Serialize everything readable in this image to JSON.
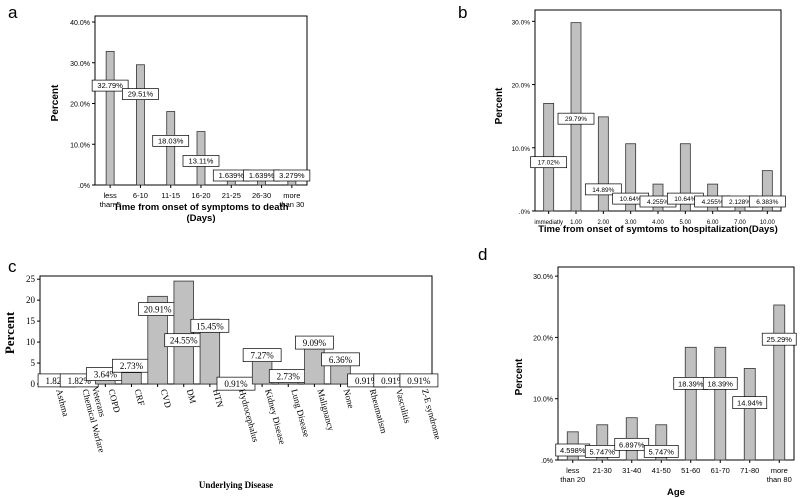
{
  "colors": {
    "bar": "#c0c0c0",
    "bar_stroke": "#333333",
    "axis": "#000000",
    "label_bg": "#ffffff"
  },
  "chart_data": [
    {
      "panel": "a",
      "type": "bar",
      "title": "",
      "ylabel": "Percent",
      "xlabel": "Time from onset of symptoms to death",
      "xlabel2": "(Days)",
      "categories": [
        [
          "less",
          "than 5"
        ],
        [
          "6-10"
        ],
        [
          "11-15"
        ],
        [
          "16-20"
        ],
        [
          "21-25"
        ],
        [
          "26-30"
        ],
        [
          "more",
          "than 30"
        ]
      ],
      "values": [
        32.79,
        29.51,
        18.03,
        13.11,
        1.639,
        1.639,
        3.279
      ],
      "data_labels": [
        "32.79%",
        "29.51%",
        "18.03%",
        "13.11%",
        "1.639%",
        "1.639%",
        "3.279%"
      ],
      "ylim": [
        0,
        40
      ],
      "yticks": [
        0,
        10,
        20,
        30,
        40
      ],
      "ytick_labels": [
        ".0%",
        "10.0%",
        "20.0%",
        "30.0%",
        "40.0%"
      ]
    },
    {
      "panel": "b",
      "type": "bar",
      "title": "",
      "ylabel": "Percent",
      "xlabel": "Time from onset of symtoms to hospitalization(Days)",
      "categories": [
        [
          "immediatly"
        ],
        [
          "1.00"
        ],
        [
          "2.00"
        ],
        [
          "3.00"
        ],
        [
          "4.00"
        ],
        [
          "5.00"
        ],
        [
          "6.00"
        ],
        [
          "7.00"
        ],
        [
          "10.00"
        ]
      ],
      "values": [
        17.02,
        29.79,
        14.89,
        10.64,
        4.255,
        10.64,
        4.255,
        2.128,
        6.383
      ],
      "data_labels": [
        "17.02%",
        "29.79%",
        "14.89%",
        "10.64%",
        "4.255%",
        "10.64%",
        "4.255%",
        "2.128%",
        "6.383%"
      ],
      "ylim": [
        0,
        31
      ],
      "yticks": [
        0,
        10,
        20,
        30
      ],
      "ytick_labels": [
        ".0%",
        "10.0%",
        "20.0%",
        "30.0%"
      ]
    },
    {
      "panel": "c",
      "type": "bar",
      "title": "",
      "ylabel": "Percent",
      "xlabel": "Underlying Disease",
      "categories": [
        [
          "Asthma"
        ],
        [
          "Chemical Warfare",
          "Veterans"
        ],
        [
          "COPD"
        ],
        [
          "CRF"
        ],
        [
          "CVD"
        ],
        [
          "DM"
        ],
        [
          "HTN"
        ],
        [
          "Hydrocephalus"
        ],
        [
          "Kidney Disease"
        ],
        [
          "Lung Disease"
        ],
        [
          "Malignancy"
        ],
        [
          "None"
        ],
        [
          "Rheumatism"
        ],
        [
          "Vasculitis"
        ],
        [
          "Z-E syndrome"
        ]
      ],
      "values": [
        1.82,
        1.82,
        3.64,
        2.73,
        20.91,
        24.55,
        15.45,
        0.91,
        7.27,
        2.73,
        9.09,
        6.36,
        0.91,
        0.91,
        0.91
      ],
      "data_labels": [
        "1.82%",
        "1.82%",
        "3.64%",
        "2.73%",
        "20.91%",
        "24.55%",
        "15.45%",
        "0.91%",
        "7.27%",
        "2.73%",
        "9.09%",
        "6.36%",
        "0.91%",
        "0.91%",
        "0.91%"
      ],
      "ylim": [
        0,
        26
      ],
      "yticks": [
        0,
        5,
        10,
        15,
        20,
        25
      ],
      "ytick_labels": [
        "0",
        "5",
        "10",
        "15",
        "20",
        "25"
      ]
    },
    {
      "panel": "d",
      "type": "bar",
      "title": "",
      "ylabel": "Percent",
      "xlabel": "Age",
      "categories": [
        [
          "less",
          "than 20"
        ],
        [
          "21-30"
        ],
        [
          "31-40"
        ],
        [
          "41-50"
        ],
        [
          "51-60"
        ],
        [
          "61-70"
        ],
        [
          "71-80"
        ],
        [
          "more",
          "than 80"
        ]
      ],
      "values": [
        4.598,
        5.747,
        6.897,
        5.747,
        18.39,
        18.39,
        14.94,
        25.29
      ],
      "data_labels": [
        "4.598%",
        "5.747%",
        "6.897%",
        "5.747%",
        "18.39%",
        "18.39%",
        "14.94%",
        "25.29%"
      ],
      "ylim": [
        0,
        31
      ],
      "yticks": [
        0,
        10,
        20,
        30
      ],
      "ytick_labels": [
        ".0%",
        "10.0%",
        "20.0%",
        "30.0%"
      ]
    }
  ]
}
